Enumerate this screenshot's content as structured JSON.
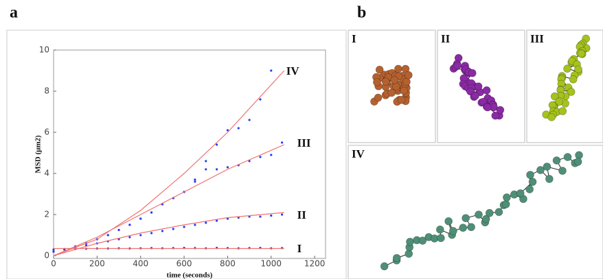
{
  "panel_a": {
    "label": "a"
  },
  "chart_data": {
    "type": "scatter",
    "xlabel": "time (seconds)",
    "ylabel": "MSD (μm2)",
    "xlim": [
      0,
      1250
    ],
    "ylim": [
      0,
      10
    ],
    "xticks": [
      0,
      200,
      400,
      600,
      800,
      1000,
      1200
    ],
    "yticks": [
      0,
      2,
      4,
      6,
      8,
      10
    ],
    "series": [
      {
        "name": "I",
        "mode": "markers",
        "color": "#2b3cf0",
        "x": [
          0,
          50,
          100,
          150,
          200,
          250,
          300,
          350,
          400,
          450,
          500,
          550,
          600,
          650,
          700,
          750,
          800,
          850,
          900,
          950,
          1000,
          1050
        ],
        "values": [
          0.3,
          0.32,
          0.33,
          0.34,
          0.35,
          0.35,
          0.36,
          0.35,
          0.36,
          0.37,
          0.36,
          0.37,
          0.38,
          0.37,
          0.36,
          0.38,
          0.37,
          0.36,
          0.37,
          0.38,
          0.36,
          0.37
        ]
      },
      {
        "name": "II",
        "mode": "markers",
        "color": "#2b3cf0",
        "x": [
          0,
          50,
          100,
          150,
          200,
          250,
          300,
          350,
          400,
          450,
          500,
          550,
          600,
          650,
          700,
          750,
          800,
          850,
          900,
          950,
          1000,
          1050
        ],
        "values": [
          0.2,
          0.3,
          0.4,
          0.5,
          0.6,
          0.7,
          0.8,
          0.9,
          1.0,
          1.1,
          1.2,
          1.3,
          1.4,
          1.5,
          1.6,
          1.7,
          1.8,
          1.85,
          1.9,
          1.9,
          1.95,
          2.0
        ]
      },
      {
        "name": "III",
        "mode": "markers",
        "color": "#2b3cf0",
        "x": [
          0,
          50,
          100,
          150,
          200,
          250,
          300,
          350,
          400,
          450,
          500,
          550,
          600,
          650,
          700,
          750,
          800,
          850,
          900,
          950,
          1000,
          1050
        ],
        "values": [
          0.2,
          0.3,
          0.45,
          0.6,
          0.8,
          1.0,
          1.25,
          1.5,
          1.8,
          2.1,
          2.5,
          2.8,
          3.1,
          3.6,
          4.2,
          4.2,
          4.3,
          4.4,
          4.6,
          4.8,
          4.9,
          5.5
        ]
      },
      {
        "name": "IV",
        "mode": "markers",
        "color": "#2b3cf0",
        "x": [
          0,
          50,
          100,
          150,
          200,
          250,
          300,
          350,
          400,
          450,
          500,
          550,
          600,
          650,
          700,
          750,
          800,
          850,
          900,
          950,
          1000,
          1050
        ],
        "values": [
          0.2,
          0.3,
          0.45,
          0.6,
          0.8,
          1.0,
          1.25,
          1.5,
          1.8,
          2.1,
          2.5,
          2.8,
          3.1,
          3.7,
          4.6,
          5.4,
          6.1,
          6.2,
          6.6,
          7.6,
          9.0,
          null
        ]
      },
      {
        "mode": "line",
        "color": "#f07070",
        "x": [
          0,
          200,
          400,
          600,
          800,
          1060
        ],
        "values": [
          0.35,
          0.35,
          0.35,
          0.35,
          0.35,
          0.35
        ]
      },
      {
        "mode": "line",
        "color": "#f07070",
        "x": [
          0,
          200,
          400,
          600,
          800,
          1060
        ],
        "values": [
          0,
          0.6,
          1.1,
          1.5,
          1.85,
          2.1
        ]
      },
      {
        "mode": "line",
        "color": "#f07070",
        "x": [
          0,
          200,
          400,
          600,
          800,
          1060
        ],
        "values": [
          0,
          0.9,
          2.0,
          3.1,
          4.2,
          5.4
        ]
      },
      {
        "mode": "line",
        "color": "#f07070",
        "x": [
          0,
          200,
          400,
          600,
          800,
          1060
        ],
        "values": [
          0,
          0.8,
          2.2,
          4.0,
          6.0,
          9.0
        ]
      }
    ]
  },
  "panel_b": {
    "label": "b",
    "panels": [
      {
        "label": "I",
        "color": "#b5612f"
      },
      {
        "label": "II",
        "color": "#8b2aa5"
      },
      {
        "label": "III",
        "color": "#a5c21e"
      },
      {
        "label": "IV",
        "color": "#4f8f77"
      }
    ]
  }
}
